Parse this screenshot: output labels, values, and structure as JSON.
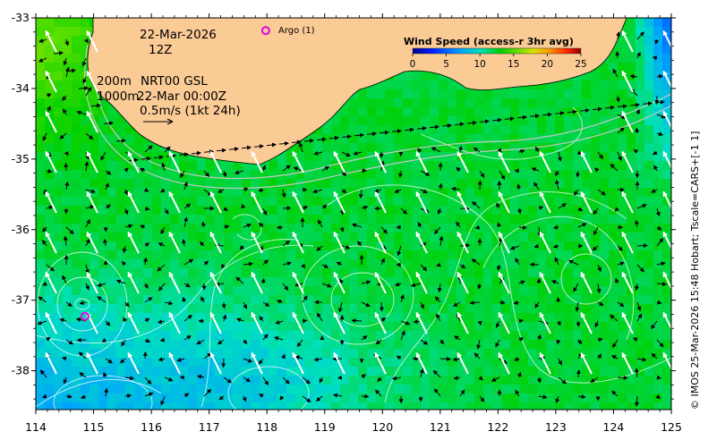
{
  "map": {
    "date": "22-Mar-2026",
    "hour": "12Z",
    "depth_top": "200m",
    "depth_bottom": "1000m",
    "product_line": "NRT00 GSL",
    "time_line": "22-Mar 00:00Z",
    "velocity_scale": "0.5m/s (1kt 24h)",
    "argo_label": "Argo (1)",
    "credit": "© IMOS 25-Mar-2026 15:48 Hobart; Tscale=CARS+[-1 1]",
    "land_color": "#fbcb96",
    "argo_color": "#e010e0",
    "lon_ticks": [
      "114",
      "115",
      "116",
      "117",
      "118",
      "119",
      "120",
      "121",
      "122",
      "123",
      "124",
      "125"
    ],
    "lat_ticks": [
      "-33",
      "-34",
      "-35",
      "-36",
      "-37",
      "-38"
    ],
    "lon_range": [
      114,
      125
    ],
    "lat_range": [
      -38.55,
      -33
    ],
    "argo_float": {
      "lon": 114.85,
      "lat": -37.23
    },
    "argo_legend_marker": {
      "lon": 117.98,
      "lat": -33.18
    }
  },
  "colorbar": {
    "title": "Wind Speed (access-r 3hr avg)",
    "ticks": [
      "0",
      "5",
      "10",
      "15",
      "20",
      "25"
    ],
    "range": [
      0,
      25
    ]
  }
}
